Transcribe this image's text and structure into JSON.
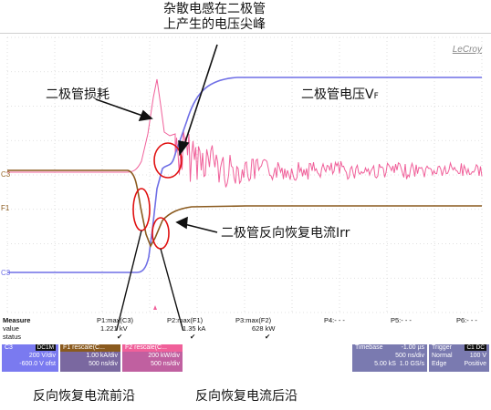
{
  "annotations": {
    "stray_inductance_line1": "杂散电感在二极管",
    "stray_inductance_line2": "上产生的电压尖峰",
    "diode_loss": "二极管损耗",
    "diode_voltage": "二极管电压V",
    "diode_voltage_sub": "F",
    "reverse_recovery": "二极管反向恢复电流Irr",
    "leading_edge": "反向恢复电流前沿",
    "trailing_edge": "反向恢复电流后沿"
  },
  "scope": {
    "brand": "LeCroy",
    "channel_markers": {
      "c3_top": "C3",
      "f1": "F1",
      "c3_bottom": "C3"
    },
    "colors": {
      "blue": "#6f6fe6",
      "pink": "#f0609a",
      "brown": "#8a5a1e",
      "ellipse": "#e01010"
    }
  },
  "measure": {
    "row_labels": [
      "Measure",
      "value",
      "status"
    ],
    "params": [
      {
        "name": "P1:max(C3)",
        "value": "1.221 kV",
        "status": "✔"
      },
      {
        "name": "P2:max(F1)",
        "value": "1.35 kA",
        "status": "✔"
      },
      {
        "name": "P3:max(F2)",
        "value": "628 kW",
        "status": "✔"
      },
      {
        "name": "P4:- - -",
        "value": "",
        "status": ""
      },
      {
        "name": "P5:- - -",
        "value": "",
        "status": ""
      },
      {
        "name": "P6:- - -",
        "value": "",
        "status": ""
      }
    ]
  },
  "channels": [
    {
      "name": "C3",
      "tag": "DC1M",
      "line1": "200 V/div",
      "line2": "-600.0 V ofst",
      "color": "#7a7af0"
    },
    {
      "name": "F1",
      "tag": "rescale(C...",
      "line1": "1.00 kA/div",
      "line2": "500 ns/div",
      "color": "#8a5a1e"
    },
    {
      "name": "F2",
      "tag": "rescale(C...",
      "line1": "200 kW/div",
      "line2": "500 ns/div",
      "color": "#f0609a"
    }
  ],
  "timebase": {
    "label": "Timebase",
    "delay": "-1.00 µs",
    "div": "500 ns/div",
    "samples": "5.00 kS",
    "rate": "1.0 GS/s"
  },
  "trigger": {
    "label": "Trigger",
    "channel": "C1 DC",
    "mode": "Normal",
    "level": "100 V",
    "type": "Edge",
    "slope": "Positive"
  }
}
